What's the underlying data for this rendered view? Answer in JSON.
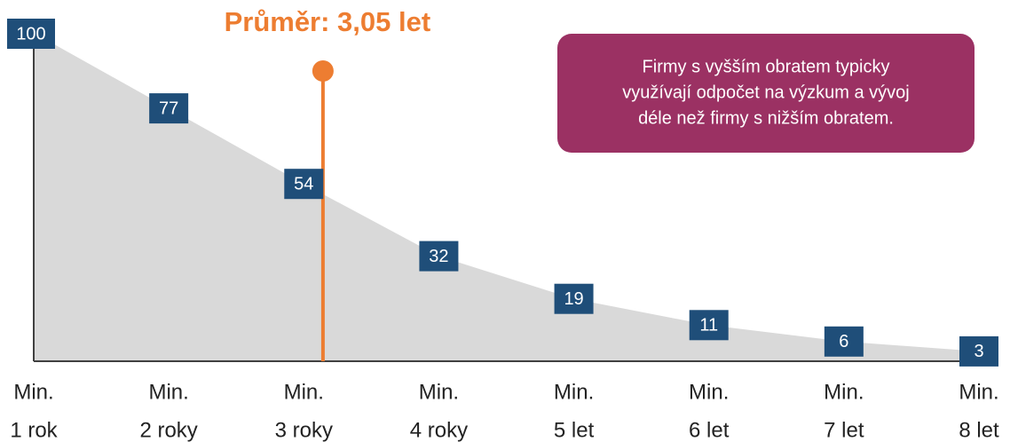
{
  "chart_data": {
    "type": "area",
    "categories": [
      [
        "Min.",
        "1 rok"
      ],
      [
        "Min.",
        "2 roky"
      ],
      [
        "Min.",
        "3 roky"
      ],
      [
        "Min.",
        "4 roky"
      ],
      [
        "Min.",
        "5 let"
      ],
      [
        "Min.",
        "6 let"
      ],
      [
        "Min.",
        "7 let"
      ],
      [
        "Min.",
        "8 let"
      ]
    ],
    "values": [
      100,
      77,
      54,
      32,
      19,
      11,
      6,
      3
    ],
    "color": "#d9d9d9",
    "label_color": "#1f4e79",
    "ylim": [
      0,
      100
    ],
    "mean": {
      "value": 3.05,
      "label": "Průměr: 3,05 let",
      "color": "#ed7d31"
    },
    "note": {
      "lines": [
        "Firmy s vyšším obratem typicky",
        "využívají odpočet na výzkum a vývoj",
        "déle než firmy s nižším obratem."
      ],
      "color": "#9b3163"
    }
  }
}
